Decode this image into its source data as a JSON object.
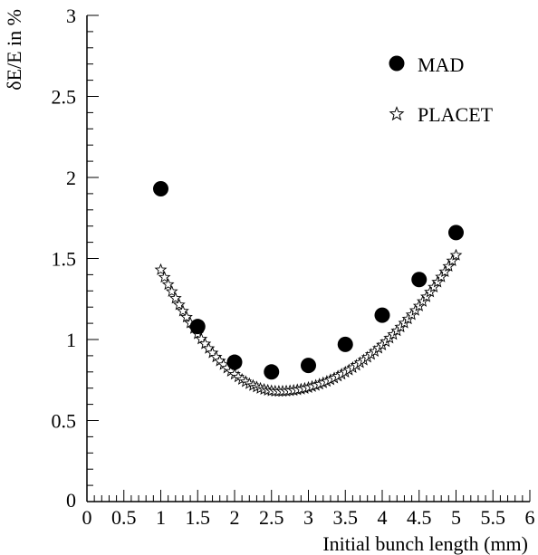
{
  "chart_data": {
    "type": "scatter",
    "title": "",
    "xlabel": "Initial bunch length (mm)",
    "ylabel": "δE/E in %",
    "xlim": [
      0,
      6
    ],
    "ylim": [
      0,
      3
    ],
    "xticks": [
      "0",
      "0.5",
      "1",
      "1.5",
      "2",
      "2.5",
      "3",
      "3.5",
      "4",
      "4.5",
      "5",
      "5.5",
      "6"
    ],
    "yticks": [
      "0",
      "0.5",
      "1",
      "1.5",
      "2",
      "2.5",
      "3"
    ],
    "grid": false,
    "legend_position": "top-right",
    "series": [
      {
        "name": "MAD",
        "marker": "filled-circle",
        "x": [
          1.0,
          1.5,
          2.0,
          2.5,
          3.0,
          3.5,
          4.0,
          4.5,
          5.0
        ],
        "y": [
          1.93,
          1.08,
          0.86,
          0.8,
          0.84,
          0.97,
          1.15,
          1.37,
          1.66
        ]
      },
      {
        "name": "PLACET",
        "marker": "open-star",
        "x_range": [
          1.0,
          5.0
        ],
        "points": 81,
        "curve": {
          "min_x": 2.6,
          "min_y": 0.68,
          "start_y": 1.43,
          "end_y": 1.52
        }
      }
    ]
  }
}
